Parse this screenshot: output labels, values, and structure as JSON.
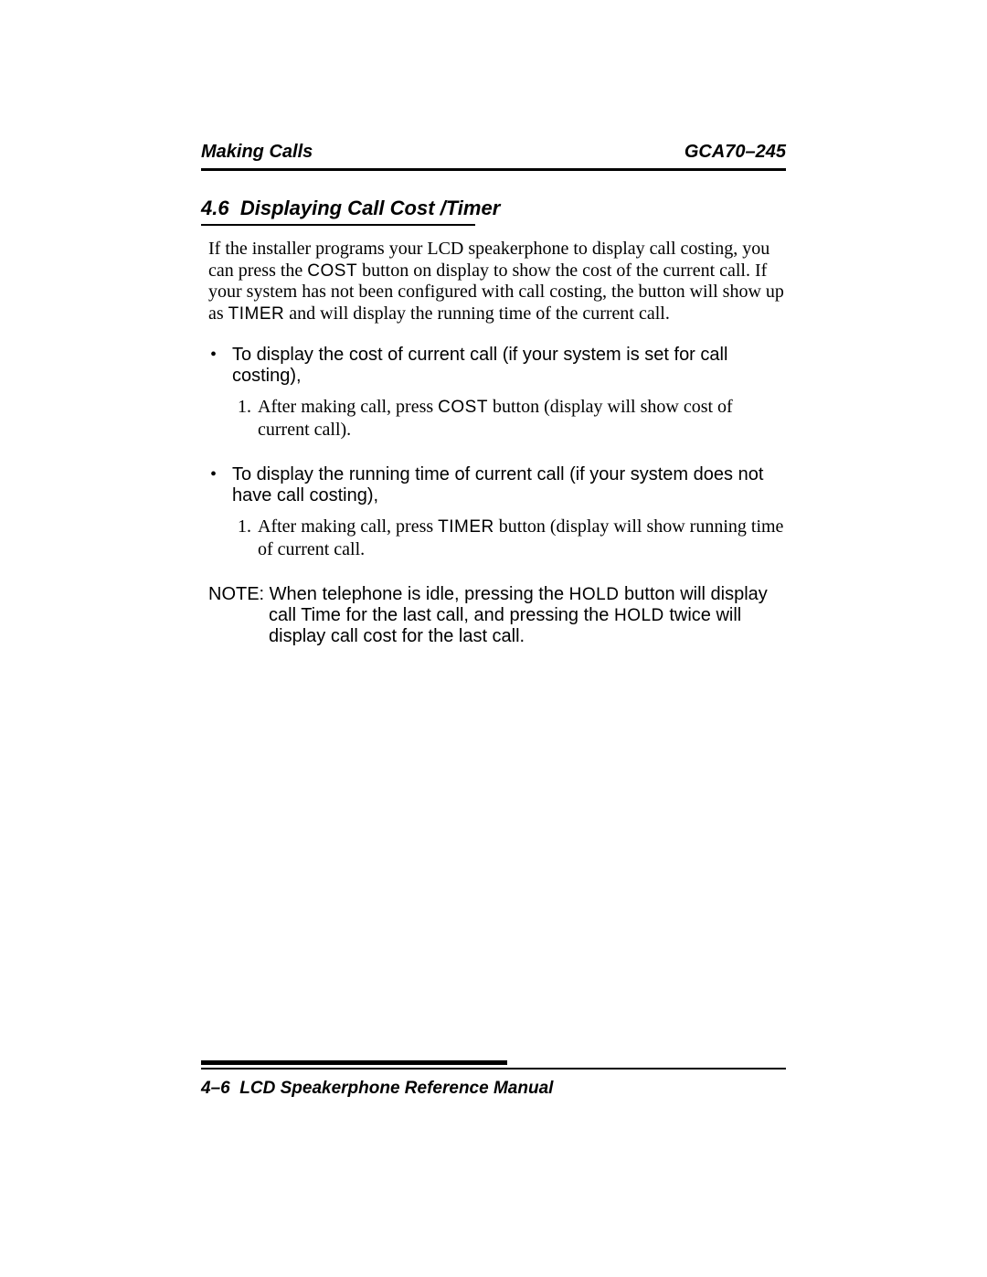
{
  "header": {
    "left": "Making Calls",
    "right": "GCA70–245"
  },
  "section": {
    "number": "4.6",
    "title": "Displaying Call Cost /Timer"
  },
  "intro": {
    "seg1": "If the installer programs your LCD speakerphone to display call costing, you can press the ",
    "btn1": "COST",
    "seg2": " button on display to show the cost of the current call. If your system has not been configured with call costing, the button will show up as ",
    "btn2": "TIMER",
    "seg3": " and will display the running time of the current call."
  },
  "bullets": [
    {
      "lead": "To display the cost of current call (if your system is set for call costing),",
      "step_pre": "After making call, press ",
      "step_btn": "COST",
      "step_post": " button (display will show cost of current call)."
    },
    {
      "lead": "To display the running time of current call (if your system does not have call costing),",
      "step_pre": "After making call, press ",
      "step_btn": "TIMER",
      "step_post": " button (display will show running time of current call."
    }
  ],
  "note": {
    "label": "NOTE:",
    "seg1": " When telephone is idle, pressing the ",
    "btn1": "HOLD",
    "seg2": " button will display call Time for the last call, and pressing the ",
    "btn2": "HOLD",
    "seg3": " twice will display call cost for the last call."
  },
  "footer": {
    "page": "4–6",
    "title": "LCD Speakerphone Reference Manual"
  }
}
